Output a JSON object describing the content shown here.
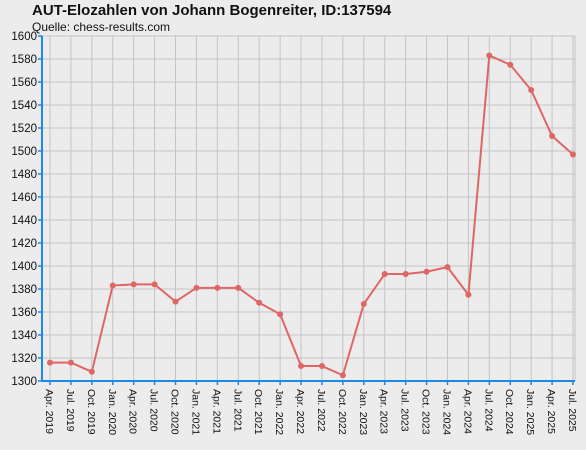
{
  "chart_data": {
    "type": "line",
    "title": "AUT-Elozahlen von Johann Bogenreiter, ID:137594",
    "subtitle": "Quelle: chess-results.com",
    "xlabel": "",
    "ylabel": "",
    "ylim": [
      1300,
      1600
    ],
    "yticks": [
      1300,
      1320,
      1340,
      1360,
      1380,
      1400,
      1420,
      1440,
      1460,
      1480,
      1500,
      1520,
      1540,
      1560,
      1580,
      1600
    ],
    "categories": [
      "Apr. 2019",
      "Jul. 2019",
      "Oct. 2019",
      "Jan. 2020",
      "Apr. 2020",
      "Jul. 2020",
      "Oct. 2020",
      "Jan. 2021",
      "Apr. 2021",
      "Jul. 2021",
      "Oct. 2021",
      "Jan. 2022",
      "Apr. 2022",
      "Jul. 2022",
      "Oct. 2022",
      "Jan. 2023",
      "Apr. 2023",
      "Jul. 2023",
      "Oct. 2023",
      "Jan. 2024",
      "Apr. 2024",
      "Jul. 2024",
      "Oct. 2024",
      "Jan. 2025",
      "Apr. 2025",
      "Jul. 2025"
    ],
    "series": [
      {
        "values": [
          1316,
          1316,
          1308,
          1383,
          1384,
          1384,
          1369,
          1381,
          1381,
          1381,
          1368,
          1358,
          1313,
          1313,
          1305,
          1367,
          1393,
          1393,
          1395,
          1399,
          1375,
          1583,
          1575,
          1553,
          1513,
          1497
        ],
        "color": "#e06666"
      }
    ],
    "grid": true,
    "legend": "none",
    "colors": {
      "background": "#ececec",
      "grid": "#c4c4c4",
      "axis": "#1e88e5",
      "line": "#e06666"
    }
  }
}
